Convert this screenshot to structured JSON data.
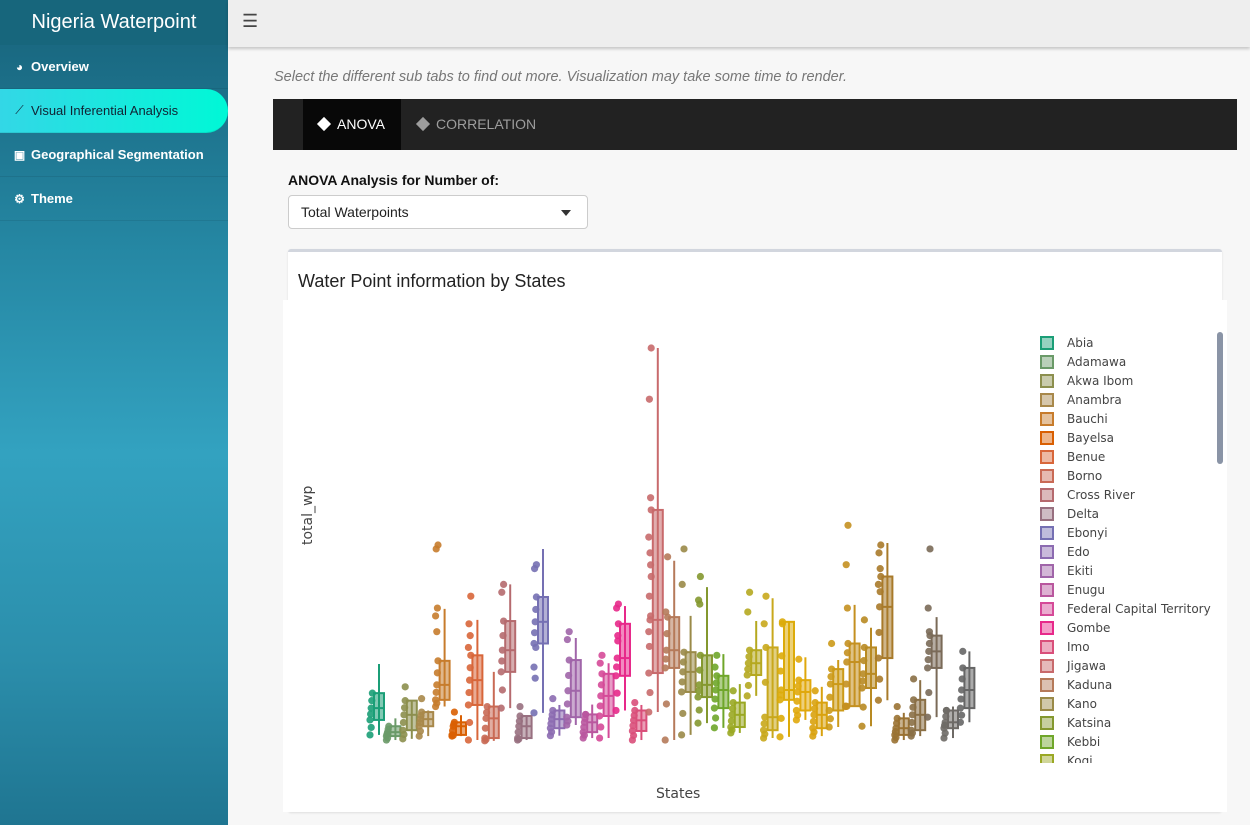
{
  "sidebar": {
    "brand": "Nigeria Waterpoint",
    "items": [
      {
        "label": "Overview",
        "icon": "dashboard-icon"
      },
      {
        "label": "Visual Inferential Analysis",
        "icon": "line-chart-icon",
        "active": true
      },
      {
        "label": "Geographical Segmentation",
        "icon": "image-icon"
      },
      {
        "label": "Theme",
        "icon": "gear-icon"
      }
    ]
  },
  "topbar": {
    "menu_icon": "hamburger-icon"
  },
  "hint": "Select the different sub tabs to find out more. Visualization may take some time to render.",
  "tabs": [
    {
      "label": "ANOVA",
      "active": true
    },
    {
      "label": "CORRELATION"
    }
  ],
  "select": {
    "label": "ANOVA Analysis for Number of:",
    "value": "Total Waterpoints"
  },
  "card": {
    "title": "Water Point information by States"
  },
  "chart_data": {
    "type": "box",
    "xlabel": "States",
    "ylabel": "total_wp",
    "y_ticks_shown": false,
    "legend": "right",
    "note_units": "relative, approximate",
    "colors": [
      "#1b9e77",
      "#6a9a68",
      "#8c8f4e",
      "#a8884a",
      "#c77c2c",
      "#d95f02",
      "#d8663a",
      "#c96a55",
      "#b56a6e",
      "#987080",
      "#7570b3",
      "#8c6bb1",
      "#a065a9",
      "#b9579e",
      "#d54a98",
      "#e7298a",
      "#d94f7a",
      "#c86a6c",
      "#b57a5a",
      "#9a8a48",
      "#84982f",
      "#6fa62a",
      "#9aa824",
      "#b5a820",
      "#c9a81c",
      "#dcab0a",
      "#e0a80c",
      "#d9a20e",
      "#cc9a18",
      "#c49020",
      "#b88a22",
      "#a87a2a",
      "#9a7233",
      "#8a6f45",
      "#7a6a58",
      "#6e6a66",
      "#666666"
    ],
    "legend_entries": [
      "Abia",
      "Adamawa",
      "Akwa Ibom",
      "Anambra",
      "Bauchi",
      "Bayelsa",
      "Benue",
      "Borno",
      "Cross River",
      "Delta",
      "Ebonyi",
      "Edo",
      "Ekiti",
      "Enugu",
      "Federal Capital Territory",
      "Gombe",
      "Imo",
      "Jigawa",
      "Kaduna",
      "Kano",
      "Katsina",
      "Kebbi",
      "Kogi"
    ],
    "boxes": [
      [
        1.8,
        5.6,
        8.6,
        12.4,
        19.8,
        []
      ],
      [
        0.5,
        1.5,
        2.5,
        4,
        6,
        []
      ],
      [
        0.8,
        3,
        6.9,
        10.5,
        10,
        [
          14
        ]
      ],
      [
        1.5,
        4,
        5.8,
        7.6,
        8,
        [
          11
        ]
      ],
      [
        9,
        10.7,
        14.5,
        20.6,
        33.8,
        [
          50,
          49,
          34,
          32,
          28
        ]
      ],
      [
        1.5,
        1.8,
        4,
        5,
        6.8,
        [
          7.6
        ]
      ],
      [
        0.5,
        9.4,
        15.7,
        22,
        31,
        [
          37,
          30,
          27,
          24
        ]
      ],
      [
        0.3,
        1,
        6,
        9,
        17.8,
        []
      ],
      [
        8.6,
        17.8,
        23.3,
        30.7,
        40,
        [
          40,
          38
        ]
      ],
      [
        0.5,
        1,
        4,
        6.6,
        6,
        [
          9
        ]
      ],
      [
        7.4,
        25,
        30.5,
        36.8,
        49,
        [
          45,
          44,
          24,
          19
        ]
      ],
      [
        1.6,
        3.5,
        5.8,
        8,
        9.4,
        [
          11
        ]
      ],
      [
        4.3,
        6.3,
        13,
        20.8,
        26.4,
        [
          28,
          26
        ]
      ],
      [
        1,
        2.5,
        5,
        7,
        9.5,
        [
          7
        ]
      ],
      [
        1,
        6.6,
        11.7,
        17.3,
        20,
        [
          22,
          20
        ]
      ],
      [
        8,
        16.8,
        21.3,
        30,
        34.5,
        [
          35,
          34,
          27
        ]
      ],
      [
        0.5,
        2.8,
        5.5,
        8,
        9.4,
        [
          10
        ]
      ],
      [
        7.6,
        17.5,
        31,
        58.9,
        100,
        [
          100,
          87,
          62,
          52,
          48,
          42,
          37,
          32,
          28
        ]
      ],
      [
        0.5,
        18.8,
        23.3,
        31.7,
        46,
        [
          47,
          33
        ]
      ],
      [
        1.8,
        12.7,
        17.8,
        22.8,
        32,
        [
          49,
          40
        ]
      ],
      [
        4.8,
        11.4,
        14.5,
        22,
        39.3,
        [
          42,
          36,
          35
        ]
      ],
      [
        3.6,
        8.6,
        13.2,
        16.8,
        22.3,
        [
          22,
          19
        ]
      ],
      [
        2.3,
        3.8,
        6.9,
        10,
        14.7,
        [
          13
        ]
      ],
      [
        11.7,
        17,
        20,
        23.3,
        30.7,
        [
          38,
          33
        ]
      ],
      [
        1,
        3,
        6.3,
        24,
        36.5,
        [
          37,
          30
        ]
      ],
      [
        1.3,
        10.7,
        13.2,
        30.5,
        30.5,
        [
          30,
          18
        ]
      ],
      [
        5.6,
        8,
        12.7,
        15.7,
        21.5,
        [
          21
        ]
      ],
      [
        1.5,
        3.5,
        6.9,
        10,
        14,
        [
          13
        ]
      ],
      [
        3.8,
        8,
        14.7,
        18.5,
        20.8,
        [
          25
        ]
      ],
      [
        9,
        9.1,
        20.3,
        25,
        34.8,
        [
          55,
          45,
          34
        ]
      ],
      [
        4,
        13.7,
        17.3,
        24,
        29,
        [
          31
        ]
      ],
      [
        10.6,
        21.3,
        34.3,
        42,
        50.5,
        [
          50,
          48,
          44,
          40
        ]
      ],
      [
        0.5,
        1.8,
        3.5,
        6,
        7.4,
        [
          9
        ]
      ],
      [
        1.5,
        3,
        6.9,
        10.7,
        15.7,
        [
          16
        ]
      ],
      [
        6.3,
        18.8,
        23,
        27,
        31.7,
        [
          49,
          34,
          28
        ]
      ],
      [
        1,
        3.5,
        5,
        8,
        9,
        [
          8
        ]
      ],
      [
        5,
        8.6,
        13.2,
        18.8,
        23,
        [
          23
        ]
      ]
    ]
  }
}
